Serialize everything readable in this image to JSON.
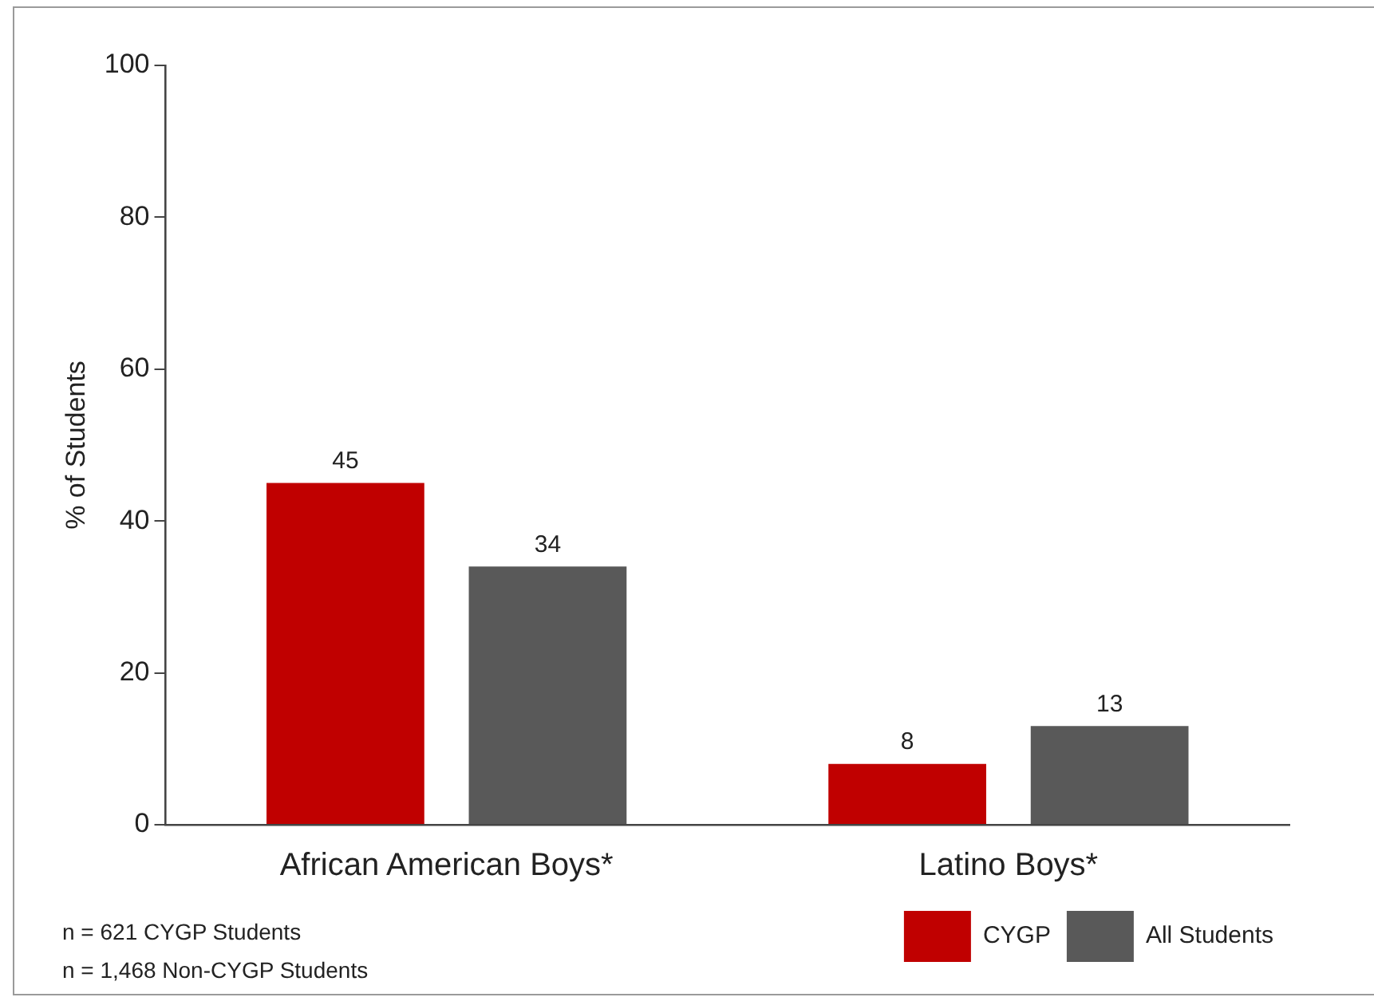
{
  "chart_data": {
    "type": "bar",
    "ylabel": "% of Students",
    "categories": [
      "African American Boys*",
      "Latino Boys*"
    ],
    "series": [
      {
        "name": "CYGP",
        "color": "#c00000",
        "values": [
          45,
          8
        ]
      },
      {
        "name": "All Students",
        "color": "#595959",
        "values": [
          34,
          13
        ]
      }
    ],
    "ylim": [
      0,
      100
    ],
    "yticks": [
      0,
      20,
      40,
      60,
      80,
      100
    ],
    "grid": false,
    "legend": "bottom right",
    "data_labels": true,
    "annotations": [
      "n = 621 CYGP Students",
      "n = 1,468 Non-CYGP Students"
    ]
  }
}
